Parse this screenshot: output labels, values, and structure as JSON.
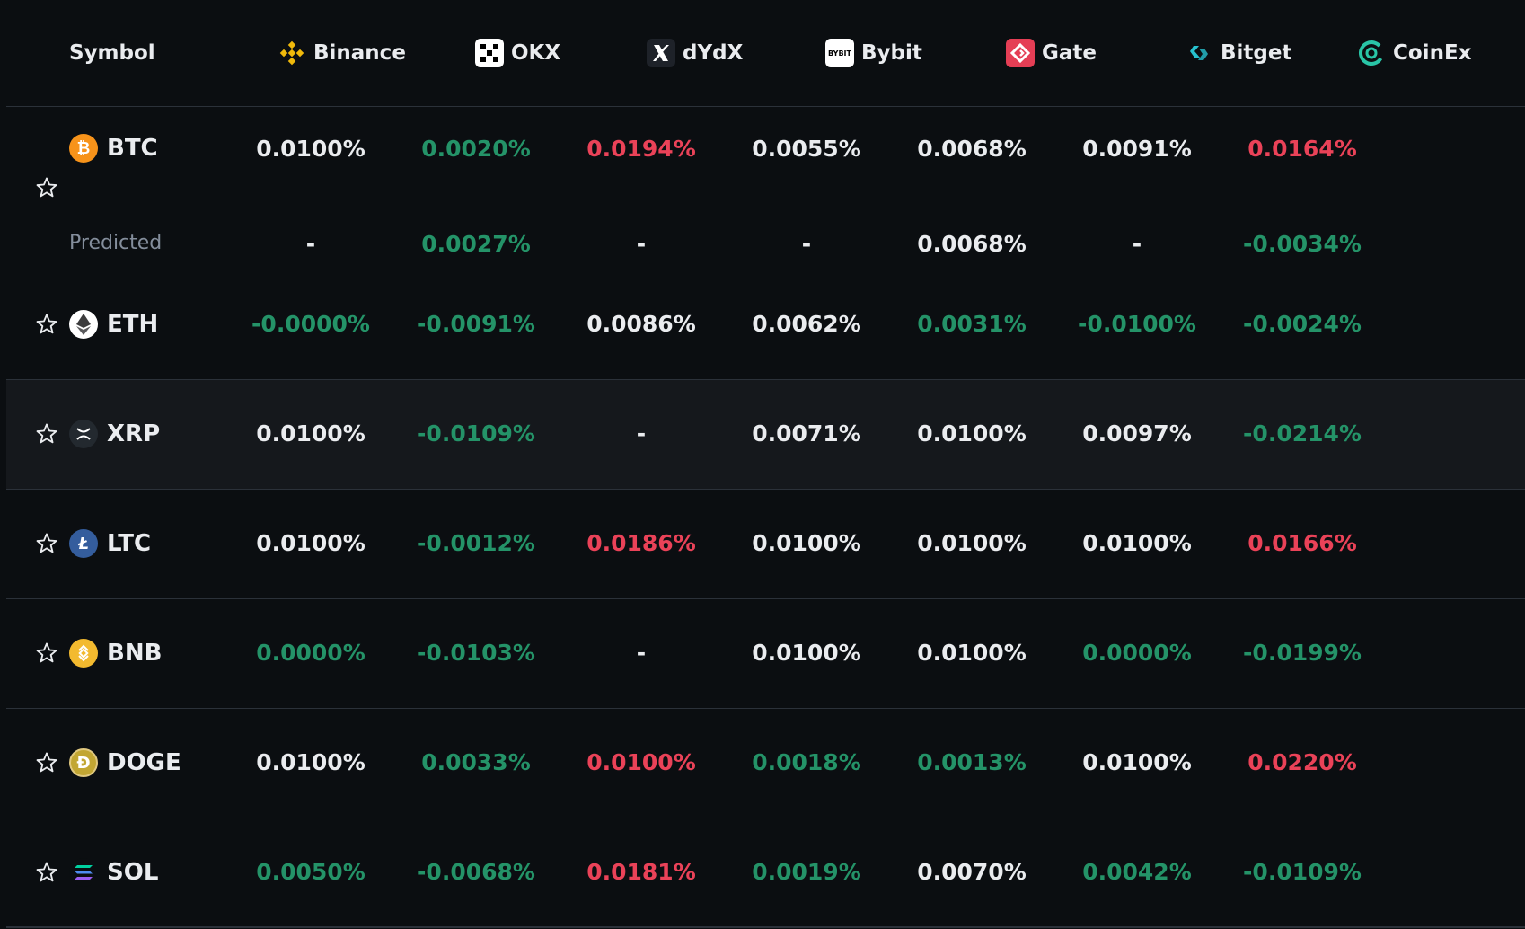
{
  "header": {
    "symbol_label": "Symbol",
    "exchanges": [
      {
        "name": "Binance",
        "icon": "binance-logo-icon",
        "color": "#f0b90b"
      },
      {
        "name": "OKX",
        "icon": "okx-logo-icon",
        "color": "#ffffff"
      },
      {
        "name": "dYdX",
        "icon": "dydx-logo-icon",
        "color": "#ffffff"
      },
      {
        "name": "Bybit",
        "icon": "bybit-logo-icon",
        "color": "#ffffff"
      },
      {
        "name": "Gate",
        "icon": "gate-logo-icon",
        "color": "#e53e55"
      },
      {
        "name": "Bitget",
        "icon": "bitget-logo-icon",
        "color": "#27c2cf"
      },
      {
        "name": "CoinEx",
        "icon": "coinex-logo-icon",
        "color": "#29c5a7"
      }
    ]
  },
  "colors": {
    "positive": "#2ebd85",
    "negative": "#f6465d",
    "neutral": "#eaecef",
    "muted": "#848e9c",
    "background": "#0b0e11"
  },
  "rows": [
    {
      "symbol": "BTC",
      "icon": "bitcoin-icon",
      "rates": [
        {
          "v": "0.0100%",
          "s": "neu"
        },
        {
          "v": "0.0020%",
          "s": "pos"
        },
        {
          "v": "0.0194%",
          "s": "neg"
        },
        {
          "v": "0.0055%",
          "s": "neu"
        },
        {
          "v": "0.0068%",
          "s": "neu"
        },
        {
          "v": "0.0091%",
          "s": "neu"
        },
        {
          "v": "0.0164%",
          "s": "neg"
        }
      ],
      "predicted_label": "Predicted",
      "predicted": [
        {
          "v": "-",
          "s": "neu"
        },
        {
          "v": "0.0027%",
          "s": "pos"
        },
        {
          "v": "-",
          "s": "neu"
        },
        {
          "v": "-",
          "s": "neu"
        },
        {
          "v": "0.0068%",
          "s": "neu"
        },
        {
          "v": "-",
          "s": "neu"
        },
        {
          "v": "-0.0034%",
          "s": "pos"
        }
      ]
    },
    {
      "symbol": "ETH",
      "icon": "ethereum-icon",
      "rates": [
        {
          "v": "-0.0000%",
          "s": "pos"
        },
        {
          "v": "-0.0091%",
          "s": "pos"
        },
        {
          "v": "0.0086%",
          "s": "neu"
        },
        {
          "v": "0.0062%",
          "s": "neu"
        },
        {
          "v": "0.0031%",
          "s": "pos"
        },
        {
          "v": "-0.0100%",
          "s": "pos"
        },
        {
          "v": "-0.0024%",
          "s": "pos"
        }
      ]
    },
    {
      "symbol": "XRP",
      "icon": "xrp-icon",
      "rates": [
        {
          "v": "0.0100%",
          "s": "neu"
        },
        {
          "v": "-0.0109%",
          "s": "pos"
        },
        {
          "v": "-",
          "s": "neu"
        },
        {
          "v": "0.0071%",
          "s": "neu"
        },
        {
          "v": "0.0100%",
          "s": "neu"
        },
        {
          "v": "0.0097%",
          "s": "neu"
        },
        {
          "v": "-0.0214%",
          "s": "pos"
        }
      ]
    },
    {
      "symbol": "LTC",
      "icon": "litecoin-icon",
      "rates": [
        {
          "v": "0.0100%",
          "s": "neu"
        },
        {
          "v": "-0.0012%",
          "s": "pos"
        },
        {
          "v": "0.0186%",
          "s": "neg"
        },
        {
          "v": "0.0100%",
          "s": "neu"
        },
        {
          "v": "0.0100%",
          "s": "neu"
        },
        {
          "v": "0.0100%",
          "s": "neu"
        },
        {
          "v": "0.0166%",
          "s": "neg"
        }
      ]
    },
    {
      "symbol": "BNB",
      "icon": "bnb-icon",
      "rates": [
        {
          "v": "0.0000%",
          "s": "pos"
        },
        {
          "v": "-0.0103%",
          "s": "pos"
        },
        {
          "v": "-",
          "s": "neu"
        },
        {
          "v": "0.0100%",
          "s": "neu"
        },
        {
          "v": "0.0100%",
          "s": "neu"
        },
        {
          "v": "0.0000%",
          "s": "pos"
        },
        {
          "v": "-0.0199%",
          "s": "pos"
        }
      ]
    },
    {
      "symbol": "DOGE",
      "icon": "dogecoin-icon",
      "rates": [
        {
          "v": "0.0100%",
          "s": "neu"
        },
        {
          "v": "0.0033%",
          "s": "pos"
        },
        {
          "v": "0.0100%",
          "s": "neg"
        },
        {
          "v": "0.0018%",
          "s": "pos"
        },
        {
          "v": "0.0013%",
          "s": "pos"
        },
        {
          "v": "0.0100%",
          "s": "neu"
        },
        {
          "v": "0.0220%",
          "s": "neg"
        }
      ]
    },
    {
      "symbol": "SOL",
      "icon": "solana-icon",
      "rates": [
        {
          "v": "0.0050%",
          "s": "pos"
        },
        {
          "v": "-0.0068%",
          "s": "pos"
        },
        {
          "v": "0.0181%",
          "s": "neg"
        },
        {
          "v": "0.0019%",
          "s": "pos"
        },
        {
          "v": "0.0070%",
          "s": "neu"
        },
        {
          "v": "0.0042%",
          "s": "pos"
        },
        {
          "v": "-0.0109%",
          "s": "pos"
        }
      ]
    }
  ]
}
